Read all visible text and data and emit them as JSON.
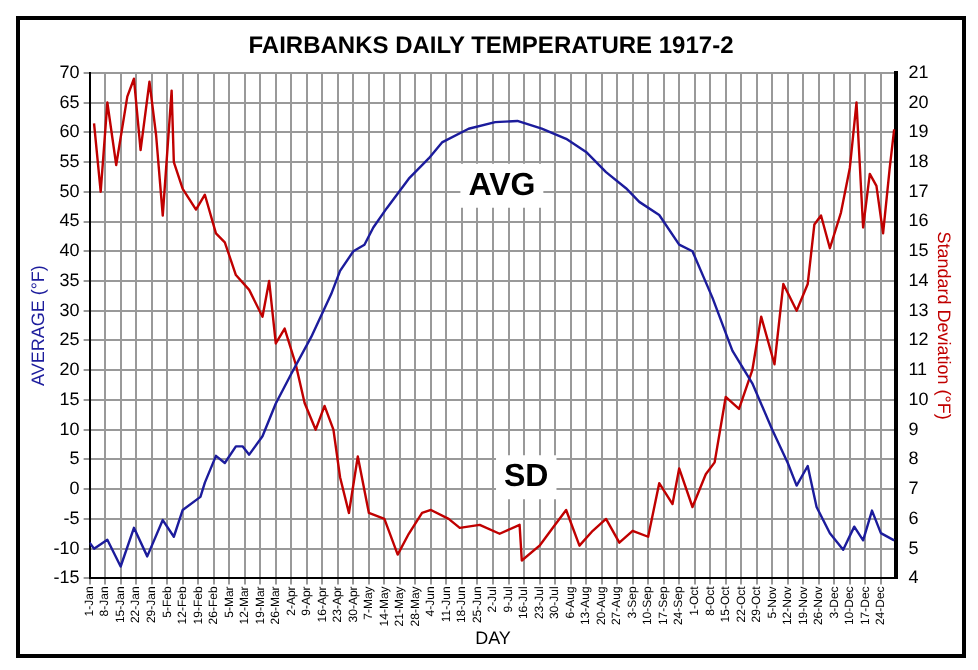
{
  "chart_data": {
    "type": "line",
    "title": "FAIRBANKS DAILY TEMPERATURE 1917-2",
    "xlabel": "DAY",
    "ylabel": "AVERAGE (°F)",
    "y2label": "Standard Deviation (°F)",
    "xlim": [
      "--01-01",
      "--12-31"
    ],
    "xticks": [
      {
        "value": "--01-01",
        "label": "1-Jan"
      },
      {
        "value": "--01-08",
        "label": "8-Jan"
      },
      {
        "value": "--01-15",
        "label": "15-Jan"
      },
      {
        "value": "--01-22",
        "label": "22-Jan"
      },
      {
        "value": "--01-29",
        "label": "29-Jan"
      },
      {
        "value": "--02-05",
        "label": "5-Feb"
      },
      {
        "value": "--02-12",
        "label": "12-Feb"
      },
      {
        "value": "--02-19",
        "label": "19-Feb"
      },
      {
        "value": "--02-26",
        "label": "26-Feb"
      },
      {
        "value": "--03-05",
        "label": "5-Mar"
      },
      {
        "value": "--03-12",
        "label": "12-Mar"
      },
      {
        "value": "--03-19",
        "label": "19-Mar"
      },
      {
        "value": "--03-26",
        "label": "26-Mar"
      },
      {
        "value": "--04-02",
        "label": "2-Apr"
      },
      {
        "value": "--04-09",
        "label": "9-Apr"
      },
      {
        "value": "--04-16",
        "label": "16-Apr"
      },
      {
        "value": "--04-23",
        "label": "23-Apr"
      },
      {
        "value": "--04-30",
        "label": "30-Apr"
      },
      {
        "value": "--05-07",
        "label": "7-May"
      },
      {
        "value": "--05-14",
        "label": "14-May"
      },
      {
        "value": "--05-21",
        "label": "21-May"
      },
      {
        "value": "--05-28",
        "label": "28-May"
      },
      {
        "value": "--06-04",
        "label": "4-Jun"
      },
      {
        "value": "--06-11",
        "label": "11-Jun"
      },
      {
        "value": "--06-18",
        "label": "18-Jun"
      },
      {
        "value": "--06-25",
        "label": "25-Jun"
      },
      {
        "value": "--07-02",
        "label": "2-Jul"
      },
      {
        "value": "--07-09",
        "label": "9-Jul"
      },
      {
        "value": "--07-16",
        "label": "16-Jul"
      },
      {
        "value": "--07-23",
        "label": "23-Jul"
      },
      {
        "value": "--07-30",
        "label": "30-Jul"
      },
      {
        "value": "--08-06",
        "label": "6-Aug"
      },
      {
        "value": "--08-13",
        "label": "13-Aug"
      },
      {
        "value": "--08-20",
        "label": "20-Aug"
      },
      {
        "value": "--08-27",
        "label": "27-Aug"
      },
      {
        "value": "--09-03",
        "label": "3-Sep"
      },
      {
        "value": "--09-10",
        "label": "10-Sep"
      },
      {
        "value": "--09-17",
        "label": "17-Sep"
      },
      {
        "value": "--09-24",
        "label": "24-Sep"
      },
      {
        "value": "--10-01",
        "label": "1-Oct"
      },
      {
        "value": "--10-08",
        "label": "8-Oct"
      },
      {
        "value": "--10-15",
        "label": "15-Oct"
      },
      {
        "value": "--10-22",
        "label": "22-Oct"
      },
      {
        "value": "--10-29",
        "label": "29-Oct"
      },
      {
        "value": "--11-05",
        "label": "5-Nov"
      },
      {
        "value": "--11-12",
        "label": "12-Nov"
      },
      {
        "value": "--11-19",
        "label": "19-Nov"
      },
      {
        "value": "--11-26",
        "label": "26-Nov"
      },
      {
        "value": "--12-03",
        "label": "3-Dec"
      },
      {
        "value": "--12-10",
        "label": "10-Dec"
      },
      {
        "value": "--12-17",
        "label": "17-Dec"
      },
      {
        "value": "--12-24",
        "label": "24-Dec"
      }
    ],
    "ylim": [
      -15,
      70
    ],
    "yticks": [
      -15,
      -10,
      -5,
      0,
      5,
      10,
      15,
      20,
      25,
      30,
      35,
      40,
      45,
      50,
      55,
      60,
      65,
      70
    ],
    "y2lim": [
      4,
      21
    ],
    "y2ticks": [
      4,
      5,
      6,
      7,
      8,
      9,
      10,
      11,
      12,
      13,
      14,
      15,
      16,
      17,
      18,
      19,
      20,
      21
    ],
    "grid": true,
    "marker": "none",
    "line_style": "solid",
    "annotations": [
      {
        "text": "AVG",
        "x": "--07-06",
        "y": 51
      },
      {
        "text": "SD",
        "x": "--07-17",
        "y": 2
      }
    ],
    "series": [
      {
        "color": "#1c1c9c",
        "x": [
          "--01-01",
          "--01-03",
          "--01-09",
          "--01-15",
          "--01-21",
          "--01-27",
          "--02-03",
          "--02-08",
          "--02-12",
          "--02-20",
          "--02-22",
          "--02-27",
          "--03-03",
          "--03-08",
          "--03-11",
          "--03-14",
          "--03-20",
          "--03-26",
          "--04-02",
          "--04-11",
          "--04-20",
          "--04-24",
          "--04-30",
          "--05-05",
          "--05-09",
          "--05-15",
          "--05-25",
          "--06-03",
          "--06-09",
          "--06-21",
          "--07-03",
          "--07-13",
          "--07-24",
          "--08-04",
          "--08-13",
          "--08-22",
          "--08-31",
          "--09-06",
          "--09-15",
          "--09-24",
          "--09-30",
          "--10-09",
          "--10-18",
          "--10-27",
          "--11-05",
          "--11-12",
          "--11-16",
          "--11-21",
          "--11-25",
          "--12-01",
          "--12-07",
          "--12-12",
          "--12-16",
          "--12-20",
          "--12-24",
          "--12-30"
        ],
        "values": [
          -9,
          -10,
          -8.5,
          -13,
          -6.5,
          -11.3,
          -5.2,
          -8,
          -3.5,
          -1.3,
          1.1,
          5.6,
          4.4,
          7.2,
          7.2,
          5.8,
          8.9,
          14.4,
          19.4,
          25.6,
          32.8,
          36.7,
          40,
          41.1,
          44,
          47.2,
          52.2,
          55.6,
          58.3,
          60.6,
          61.7,
          61.9,
          60.6,
          58.9,
          56.7,
          53.3,
          50.6,
          48.3,
          46.1,
          41.1,
          40,
          32.2,
          23.3,
          17.8,
          10,
          4.4,
          0.6,
          3.9,
          -3,
          -7.4,
          -10.2,
          -6.3,
          -8.6,
          -3.6,
          -7.4,
          -8.6
        ]
      },
      {
        "color": "#c00000",
        "axis": "y2",
        "x": [
          "--01-03",
          "--01-06",
          "--01-09",
          "--01-13",
          "--01-18",
          "--01-21",
          "--01-24",
          "--01-28",
          "--01-31",
          "--02-03",
          "--02-07",
          "--02-08",
          "--02-12",
          "--02-18",
          "--02-22",
          "--02-27",
          "--03-03",
          "--03-08",
          "--03-14",
          "--03-20",
          "--03-23",
          "--03-26",
          "--03-30",
          "--04-04",
          "--04-08",
          "--04-13",
          "--04-17",
          "--04-21",
          "--04-24",
          "--04-28",
          "--05-02",
          "--05-07",
          "--05-14",
          "--05-20",
          "--05-25",
          "--05-31",
          "--06-04",
          "--06-12",
          "--06-17",
          "--06-26",
          "--07-05",
          "--07-14",
          "--07-15",
          "--07-23",
          "--07-29",
          "--08-04",
          "--08-10",
          "--08-16",
          "--08-22",
          "--08-28",
          "--09-03",
          "--09-10",
          "--09-15",
          "--09-21",
          "--09-24",
          "--09-30",
          "--10-06",
          "--10-10",
          "--10-15",
          "--10-21",
          "--10-27",
          "--10-31",
          "--11-06",
          "--11-10",
          "--11-16",
          "--11-21",
          "--11-24",
          "--11-27",
          "--12-01",
          "--12-06",
          "--12-10",
          "--12-13",
          "--12-16",
          "--12-19",
          "--12-22",
          "--12-25",
          "--12-28",
          "--12-30"
        ],
        "values": [
          19.3,
          17,
          20,
          17.9,
          20.2,
          20.8,
          18.4,
          20.7,
          18.9,
          16.2,
          20.4,
          18,
          17.1,
          16.4,
          16.9,
          15.6,
          15.3,
          14.2,
          13.7,
          12.8,
          14,
          11.9,
          12.4,
          11.2,
          9.9,
          9,
          9.8,
          9,
          7.4,
          6.2,
          8.1,
          6.2,
          6,
          4.8,
          5.5,
          6.2,
          6.3,
          6,
          5.7,
          5.8,
          5.5,
          5.8,
          4.6,
          5.1,
          5.7,
          6.3,
          5.1,
          5.6,
          6,
          5.2,
          5.6,
          5.4,
          7.2,
          6.5,
          7.7,
          6.4,
          7.5,
          7.9,
          10.1,
          9.7,
          11,
          12.8,
          11.2,
          13.9,
          13,
          13.9,
          15.9,
          16.2,
          15.1,
          16.3,
          17.8,
          20,
          15.8,
          17.6,
          17.2,
          15.6,
          17.8,
          19.1
        ]
      }
    ]
  }
}
